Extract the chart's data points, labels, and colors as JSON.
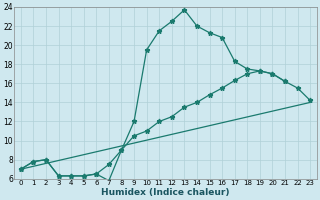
{
  "title": "",
  "xlabel": "Humidex (Indice chaleur)",
  "xlim": [
    -0.5,
    23.5
  ],
  "ylim": [
    6,
    24
  ],
  "xticks": [
    0,
    1,
    2,
    3,
    4,
    5,
    6,
    7,
    8,
    9,
    10,
    11,
    12,
    13,
    14,
    15,
    16,
    17,
    18,
    19,
    20,
    21,
    22,
    23
  ],
  "yticks": [
    6,
    8,
    10,
    12,
    14,
    16,
    18,
    20,
    22,
    24
  ],
  "background_color": "#cfe8ef",
  "grid_color": "#b0d0d8",
  "line_color": "#1a7a6e",
  "line1_x": [
    0,
    1,
    2,
    3,
    4,
    5,
    6,
    7,
    8,
    9,
    10,
    11,
    12,
    13,
    14,
    15,
    16,
    17,
    18,
    19,
    20,
    21
  ],
  "line1_y": [
    7.0,
    7.8,
    8.0,
    6.3,
    6.3,
    6.3,
    6.5,
    5.8,
    9.0,
    12.0,
    19.5,
    21.5,
    22.5,
    23.7,
    22.0,
    21.3,
    20.8,
    18.3,
    17.5,
    17.3,
    17.0,
    16.2
  ],
  "line2_x": [
    0,
    1,
    2,
    3,
    4,
    5,
    6,
    7,
    8,
    9,
    10,
    11,
    12,
    13,
    14,
    15,
    16,
    17,
    18,
    19,
    20,
    21,
    22,
    23
  ],
  "line2_y": [
    7.0,
    7.8,
    8.0,
    6.3,
    6.3,
    6.3,
    6.5,
    7.5,
    9.0,
    10.5,
    11.0,
    12.0,
    12.5,
    13.5,
    14.0,
    14.8,
    15.5,
    16.3,
    17.0,
    17.3,
    17.0,
    16.2,
    15.5,
    14.2
  ],
  "line3_x": [
    0,
    23
  ],
  "line3_y": [
    7.0,
    14.0
  ]
}
